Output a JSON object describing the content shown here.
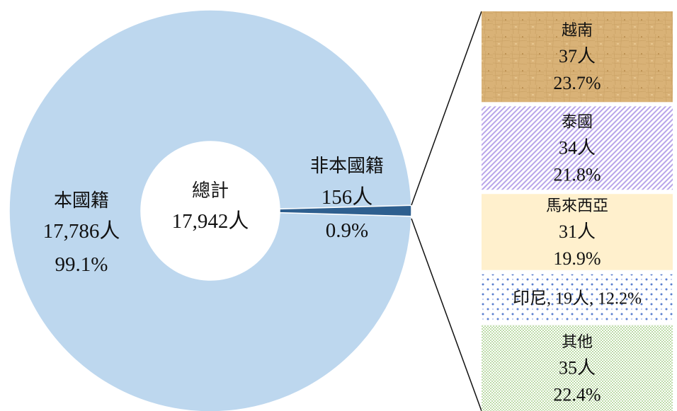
{
  "chart_data": [
    {
      "type": "pie",
      "subtype": "donut",
      "center_label": {
        "title": "總計",
        "total": "17,942人"
      },
      "slices": [
        {
          "name": "本國籍",
          "count_label": "17,786人",
          "pct_label": "99.1%",
          "value": 17786,
          "percent": 99.1,
          "color": "#bdd7ee"
        },
        {
          "name": "非本國籍",
          "count_label": "156人",
          "pct_label": "0.9%",
          "value": 156,
          "percent": 0.9,
          "color": "#2e5f8f"
        }
      ]
    },
    {
      "type": "bar",
      "subtype": "stacked-breakdown",
      "breakdown_of": "非本國籍",
      "segments": [
        {
          "name": "越南",
          "count_label": "37人",
          "pct_label": "23.7%",
          "value": 37,
          "percent": 23.7,
          "color": "#d9b277",
          "pattern": "parchment"
        },
        {
          "name": "泰國",
          "count_label": "34人",
          "pct_label": "21.8%",
          "value": 34,
          "percent": 21.8,
          "color": "#b9a6ea",
          "pattern": "diagonal-lines"
        },
        {
          "name": "馬來西亞",
          "count_label": "31人",
          "pct_label": "19.9%",
          "value": 31,
          "percent": 19.9,
          "color": "#fff0cd",
          "pattern": "solid"
        },
        {
          "name": "印尼",
          "count_label": "19人",
          "pct_label": "12.2%",
          "value": 19,
          "percent": 12.2,
          "color": "#5b7fd0",
          "pattern": "dots",
          "inline_label": "印尼, 19人, 12.2%"
        },
        {
          "name": "其他",
          "count_label": "35人",
          "pct_label": "22.4%",
          "value": 35,
          "percent": 22.4,
          "color": "#a9d18e",
          "pattern": "fine-dots"
        }
      ]
    }
  ]
}
